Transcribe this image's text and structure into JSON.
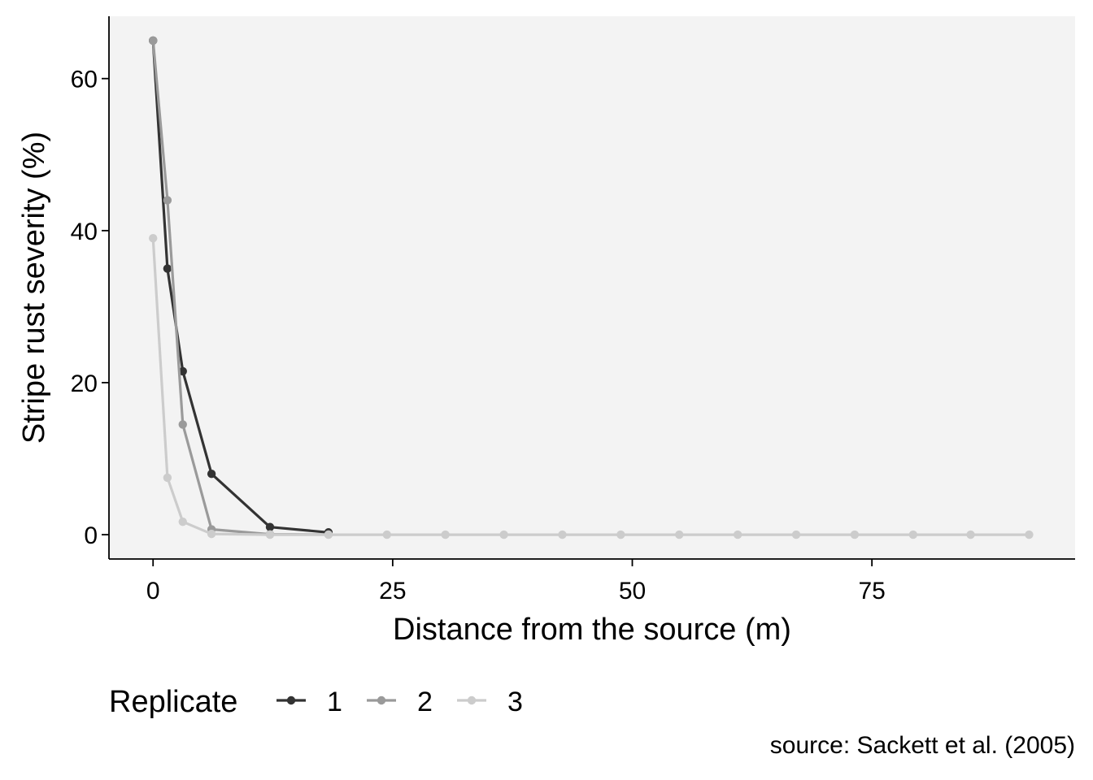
{
  "chart_data": {
    "type": "line",
    "xlabel": "Distance from the source (m)",
    "ylabel": "Stripe rust severity (%)",
    "xlim": [
      -4.6,
      96.2
    ],
    "ylim": [
      -3.2,
      68.2
    ],
    "x_ticks": [
      0,
      25,
      50,
      75
    ],
    "x_tick_labels": [
      "0",
      "25",
      "50",
      "75"
    ],
    "y_ticks": [
      0,
      20,
      40,
      60
    ],
    "y_tick_labels": [
      "0",
      "20",
      "40",
      "60"
    ],
    "grid": false,
    "panel_background": "#f3f3f3",
    "legend": {
      "title": "Replicate",
      "position": "bottom",
      "entries": [
        "1",
        "2",
        "3"
      ]
    },
    "series": [
      {
        "name": "1",
        "color": "#333333",
        "x": [
          0,
          1.5,
          3.1,
          6.1,
          12.2,
          18.3
        ],
        "y": [
          65,
          35,
          21.5,
          8,
          1,
          0.3
        ]
      },
      {
        "name": "2",
        "color": "#9a9a9a",
        "x": [
          0,
          1.5,
          3.1,
          6.1,
          12.2,
          18.3
        ],
        "y": [
          65,
          44,
          14.5,
          0.7,
          0.05,
          0.02
        ]
      },
      {
        "name": "3",
        "color": "#cccccc",
        "x": [
          0,
          1.5,
          3.1,
          6.1,
          12.2,
          18.3,
          24.4,
          30.5,
          36.6,
          42.7,
          48.8,
          54.9,
          61,
          67.1,
          73.2,
          79.3,
          85.3,
          91.4
        ],
        "y": [
          39,
          7.5,
          1.7,
          0.1,
          0,
          0,
          0,
          0,
          0,
          0,
          0,
          0,
          0,
          0,
          0,
          0,
          0,
          0
        ]
      }
    ]
  },
  "caption": "source: Sackett et al. (2005)"
}
